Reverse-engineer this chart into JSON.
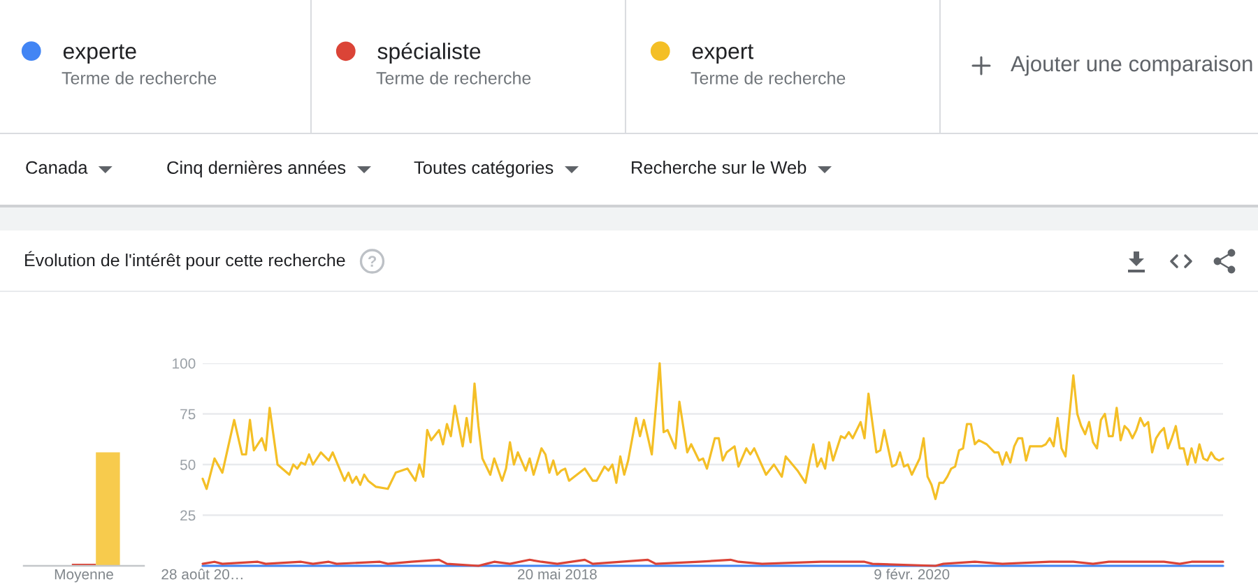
{
  "chart_data": [
    {
      "type": "other",
      "annotations": [
        "Terme de recherche",
        "Terme de recherche",
        "Terme de recherche",
        "Ajouter une comparaison",
        "Canada",
        "Cinq dernières années",
        "Toutes catégories",
        "Recherche sur le Web"
      ]
    },
    {
      "type": "bar",
      "title": "Évolution de l'intérêt pour cette recherche",
      "categories": [
        "Moyenne"
      ],
      "series": [
        {
          "color": "#4285f4",
          "values": [
            0
          ]
        },
        {
          "color": "#db4437",
          "values": [
            1
          ]
        },
        {
          "color": "#f7cb4d",
          "values": [
            56
          ]
        }
      ],
      "ylim": [
        0,
        100
      ],
      "tick_labels": "x"
    },
    {
      "type": "line",
      "xlim": [
        "2016-08-28",
        "2021-08-15"
      ],
      "xticks": [
        {
          "value": "2016-08-28",
          "label": "28 août 20…"
        },
        {
          "value": "2018-05-20",
          "label": "20 mai 2018"
        },
        {
          "value": "2020-02-09",
          "label": "9 févr. 2020"
        }
      ],
      "ylim": [
        0,
        100
      ],
      "yticks": [
        25,
        50,
        75,
        100
      ],
      "grid": "y",
      "legend": "top",
      "series": [
        {
          "name": "experte",
          "color": "#4285f4",
          "x": [
            "2016-08-28",
            "2021-08-15"
          ],
          "values": [
            0,
            0
          ]
        },
        {
          "name": "spécialiste",
          "color": "#db4437",
          "x": [
            "2016-08-28",
            "2016-09-18",
            "2016-10-02",
            "2016-12-04",
            "2016-12-18",
            "2017-02-19",
            "2017-03-12",
            "2017-04-09",
            "2017-04-23",
            "2017-07-09",
            "2017-07-23",
            "2017-09-03",
            "2017-10-22",
            "2017-11-05",
            "2017-12-31",
            "2018-01-14",
            "2018-01-28",
            "2018-02-25",
            "2018-04-01",
            "2018-04-22",
            "2018-05-20",
            "2018-07-08",
            "2018-07-22",
            "2018-10-28",
            "2018-11-11",
            "2019-01-27",
            "2019-03-24",
            "2019-04-07",
            "2019-05-19",
            "2019-09-01",
            "2019-11-17",
            "2019-12-01",
            "2020-03-22",
            "2020-04-05",
            "2020-05-31",
            "2020-07-19",
            "2020-10-11",
            "2020-11-22",
            "2020-12-27",
            "2021-01-24",
            "2021-05-02",
            "2021-05-30",
            "2021-06-20",
            "2021-08-15"
          ],
          "values": [
            1,
            2,
            1,
            2,
            1,
            2,
            1,
            2,
            1,
            2,
            1,
            2,
            3,
            1,
            0,
            1,
            2,
            1,
            3,
            2,
            1,
            3,
            1,
            3,
            1,
            2,
            3,
            2,
            1,
            2,
            2,
            1,
            0,
            1,
            2,
            1,
            2,
            2,
            1,
            2,
            2,
            1,
            2,
            2
          ]
        },
        {
          "name": "expert",
          "color": "#f4bf26",
          "x": [
            "2016-08-28",
            "2016-09-04",
            "2016-09-18",
            "2016-10-02",
            "2016-10-23",
            "2016-11-06",
            "2016-11-13",
            "2016-11-20",
            "2016-11-27",
            "2016-12-11",
            "2016-12-18",
            "2016-12-25",
            "2017-01-08",
            "2017-01-29",
            "2017-02-05",
            "2017-02-12",
            "2017-02-19",
            "2017-02-26",
            "2017-03-05",
            "2017-03-12",
            "2017-03-26",
            "2017-04-09",
            "2017-04-16",
            "2017-05-07",
            "2017-05-14",
            "2017-05-21",
            "2017-05-28",
            "2017-06-04",
            "2017-06-11",
            "2017-06-18",
            "2017-07-02",
            "2017-07-23",
            "2017-08-06",
            "2017-08-27",
            "2017-09-10",
            "2017-09-17",
            "2017-09-24",
            "2017-10-01",
            "2017-10-08",
            "2017-10-22",
            "2017-10-29",
            "2017-11-05",
            "2017-11-12",
            "2017-11-19",
            "2017-12-03",
            "2017-12-10",
            "2017-12-17",
            "2017-12-24",
            "2017-12-31",
            "2018-01-07",
            "2018-01-21",
            "2018-01-28",
            "2018-02-11",
            "2018-02-18",
            "2018-02-25",
            "2018-03-04",
            "2018-03-11",
            "2018-03-25",
            "2018-04-01",
            "2018-04-08",
            "2018-04-22",
            "2018-04-29",
            "2018-05-06",
            "2018-05-13",
            "2018-05-20",
            "2018-05-27",
            "2018-06-03",
            "2018-06-10",
            "2018-07-08",
            "2018-07-22",
            "2018-07-29",
            "2018-08-12",
            "2018-08-19",
            "2018-08-26",
            "2018-09-02",
            "2018-09-09",
            "2018-09-16",
            "2018-09-23",
            "2018-10-07",
            "2018-10-14",
            "2018-10-21",
            "2018-11-04",
            "2018-11-18",
            "2018-11-25",
            "2018-12-02",
            "2018-12-16",
            "2018-12-23",
            "2019-01-06",
            "2019-01-13",
            "2019-01-27",
            "2019-02-03",
            "2019-02-10",
            "2019-02-24",
            "2019-03-03",
            "2019-03-10",
            "2019-03-17",
            "2019-03-31",
            "2019-04-07",
            "2019-04-21",
            "2019-04-28",
            "2019-05-05",
            "2019-05-26",
            "2019-06-09",
            "2019-06-23",
            "2019-06-30",
            "2019-07-21",
            "2019-08-04",
            "2019-08-11",
            "2019-08-18",
            "2019-08-25",
            "2019-09-01",
            "2019-09-08",
            "2019-09-15",
            "2019-09-22",
            "2019-10-06",
            "2019-10-13",
            "2019-10-20",
            "2019-10-27",
            "2019-11-03",
            "2019-11-10",
            "2019-11-17",
            "2019-11-24",
            "2019-12-08",
            "2019-12-15",
            "2019-12-22",
            "2020-01-05",
            "2020-01-12",
            "2020-01-19",
            "2020-01-26",
            "2020-02-02",
            "2020-02-09",
            "2020-02-23",
            "2020-03-01",
            "2020-03-08",
            "2020-03-15",
            "2020-03-22",
            "2020-03-29",
            "2020-04-05",
            "2020-04-12",
            "2020-04-19",
            "2020-04-26",
            "2020-05-03",
            "2020-05-10",
            "2020-05-17",
            "2020-05-24",
            "2020-05-31",
            "2020-06-07",
            "2020-06-21",
            "2020-07-05",
            "2020-07-12",
            "2020-07-19",
            "2020-07-26",
            "2020-08-02",
            "2020-08-09",
            "2020-08-16",
            "2020-08-23",
            "2020-08-30",
            "2020-09-06",
            "2020-09-27",
            "2020-10-04",
            "2020-10-11",
            "2020-10-18",
            "2020-10-25",
            "2020-11-01",
            "2020-11-08",
            "2020-11-22",
            "2020-11-29",
            "2020-12-06",
            "2020-12-13",
            "2020-12-20",
            "2020-12-27",
            "2021-01-03",
            "2021-01-10",
            "2021-01-17",
            "2021-01-24",
            "2021-01-31",
            "2021-02-07",
            "2021-02-14",
            "2021-02-21",
            "2021-02-28",
            "2021-03-07",
            "2021-03-14",
            "2021-03-21",
            "2021-03-28",
            "2021-04-04",
            "2021-04-11",
            "2021-04-18",
            "2021-04-25",
            "2021-05-02",
            "2021-05-09",
            "2021-05-16",
            "2021-05-23",
            "2021-05-30",
            "2021-06-06",
            "2021-06-13",
            "2021-06-20",
            "2021-06-27",
            "2021-07-04",
            "2021-07-11",
            "2021-07-18",
            "2021-07-25",
            "2021-08-01",
            "2021-08-08",
            "2021-08-15"
          ],
          "values": [
            43,
            38,
            53,
            46,
            72,
            55,
            55,
            72,
            57,
            63,
            57,
            78,
            50,
            45,
            50,
            48,
            51,
            50,
            55,
            50,
            56,
            52,
            56,
            42,
            46,
            41,
            44,
            40,
            45,
            42,
            39,
            38,
            46,
            48,
            42,
            50,
            44,
            67,
            62,
            67,
            60,
            70,
            64,
            79,
            59,
            73,
            61,
            90,
            69,
            53,
            45,
            53,
            42,
            48,
            61,
            50,
            56,
            47,
            53,
            45,
            58,
            55,
            46,
            52,
            45,
            47,
            48,
            42,
            48,
            42,
            42,
            49,
            47,
            50,
            41,
            54,
            45,
            52,
            73,
            64,
            72,
            55,
            100,
            66,
            67,
            58,
            81,
            56,
            60,
            52,
            53,
            48,
            63,
            63,
            52,
            56,
            59,
            49,
            58,
            55,
            58,
            45,
            50,
            44,
            54,
            47,
            41,
            51,
            60,
            49,
            53,
            48,
            61,
            52,
            64,
            63,
            66,
            63,
            67,
            71,
            63,
            85,
            56,
            57,
            67,
            49,
            50,
            56,
            49,
            50,
            45,
            53,
            63,
            44,
            40,
            33,
            41,
            41,
            44,
            48,
            49,
            57,
            58,
            70,
            70,
            60,
            62,
            60,
            56,
            56,
            50,
            56,
            51,
            59,
            63,
            63,
            52,
            59,
            59,
            60,
            63,
            59,
            73,
            58,
            54,
            94,
            75,
            69,
            65,
            71,
            61,
            58,
            72,
            75,
            64,
            64,
            78,
            62,
            69,
            67,
            63,
            67,
            73,
            69,
            71,
            56,
            63,
            66,
            68,
            58,
            63,
            69,
            58,
            58,
            50,
            58,
            51,
            60,
            53,
            52,
            56,
            53,
            52,
            53
          ]
        }
      ]
    }
  ]
}
